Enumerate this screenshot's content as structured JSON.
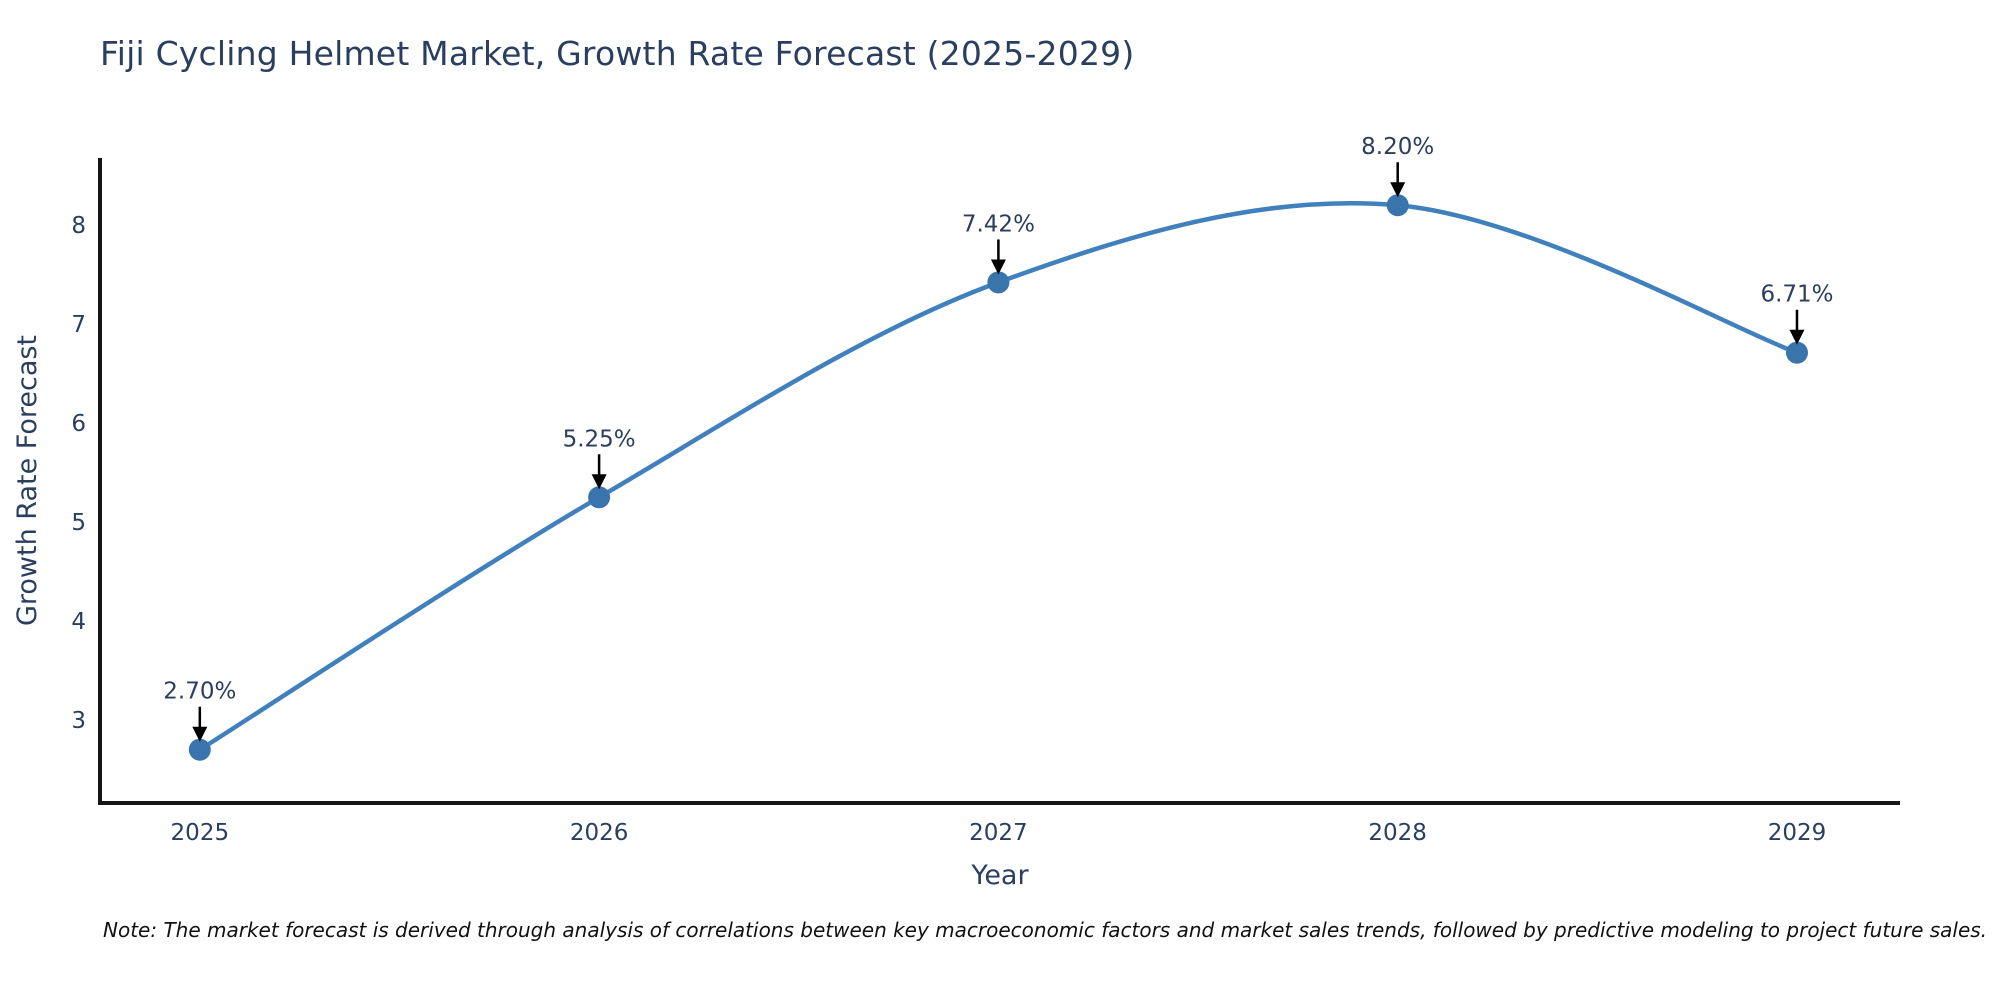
{
  "title": "Fiji Cycling Helmet Market, Growth Rate Forecast (2025-2029)",
  "note": "Note: The market forecast is derived through analysis of correlations between key macroeconomic factors and market sales trends, followed by predictive modeling to project future sales.",
  "chart_data": {
    "type": "line",
    "title": "Fiji Cycling Helmet Market, Growth Rate Forecast (2025-2029)",
    "xlabel": "Year",
    "ylabel": "Growth Rate Forecast",
    "x": [
      2025,
      2026,
      2027,
      2028,
      2029
    ],
    "values": [
      2.7,
      5.25,
      7.42,
      8.2,
      6.71
    ],
    "point_labels": [
      "2.70%",
      "5.25%",
      "7.42%",
      "8.20%",
      "6.71%"
    ],
    "yticks": [
      3,
      4,
      5,
      6,
      7,
      8
    ],
    "xlim": [
      2024.75,
      2029.258
    ],
    "ylim": [
      2.162,
      8.677
    ],
    "line_shape": "spline",
    "grid": false,
    "legend": "none",
    "colors": {
      "line": "#4080bd",
      "marker": "#3a74ad",
      "axis": "#161616",
      "tick_text": "#2a3f5f",
      "axis_title_text": "#2a3f5f",
      "annotation_text": "#2c3e5d",
      "arrow": "#000000",
      "title_text": "#2a3f5f",
      "note_text": "#111111",
      "background": "#ffffff"
    }
  }
}
